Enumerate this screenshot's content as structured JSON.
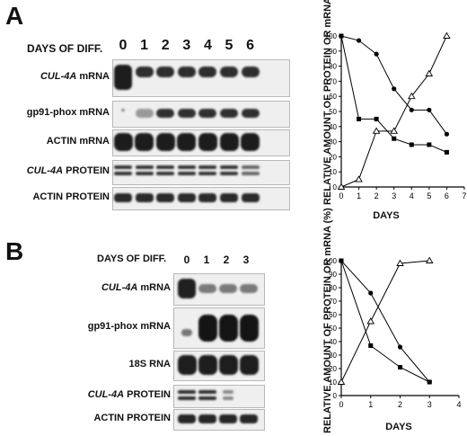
{
  "panelA": {
    "letter": "A",
    "header": "DAYS OF DIFF.",
    "days": [
      "0",
      "1",
      "2",
      "3",
      "4",
      "5",
      "6"
    ],
    "rows": [
      {
        "italic": "CUL-4A",
        "rest": " mRNA"
      },
      {
        "italic": "",
        "rest": "gp91-phox mRNA"
      },
      {
        "italic": "",
        "rest": "ACTIN mRNA"
      },
      {
        "italic": "CUL-4A",
        "rest": " PROTEIN"
      },
      {
        "italic": "",
        "rest": "ACTIN PROTEIN"
      }
    ]
  },
  "panelB": {
    "letter": "B",
    "header": "DAYS OF DIFF.",
    "days": [
      "0",
      "1",
      "2",
      "3"
    ],
    "rows": [
      {
        "italic": "CUL-4A",
        "rest": " mRNA"
      },
      {
        "italic": "",
        "rest": "gp91-phox mRNA"
      },
      {
        "italic": "",
        "rest": "18S RNA"
      },
      {
        "italic": "CUL-4A",
        "rest": " PROTEIN"
      },
      {
        "italic": "",
        "rest": "ACTIN PROTEIN"
      }
    ]
  },
  "chart_data": [
    {
      "type": "line",
      "ylabel": "RELATIVE AMOUNT OF PROTEIN OR mRNA (%)",
      "xlabel": "DAYS",
      "xlim": [
        0,
        7
      ],
      "ylim": [
        0,
        100
      ],
      "xticks": [
        "0",
        "1",
        "2",
        "3",
        "4",
        "5",
        "6",
        "7"
      ],
      "yticks": [
        "0",
        "10",
        "20",
        "30",
        "40",
        "50",
        "60",
        "70",
        "80",
        "90",
        "100"
      ],
      "series": [
        {
          "marker": "circle-filled",
          "x": [
            0,
            1,
            2,
            3,
            4,
            5,
            6
          ],
          "y": [
            100,
            97,
            88,
            65,
            51,
            51,
            35
          ]
        },
        {
          "marker": "square-filled",
          "x": [
            0,
            1,
            2,
            3,
            4,
            5,
            6
          ],
          "y": [
            100,
            45,
            45,
            32,
            28,
            28,
            23
          ]
        },
        {
          "marker": "triangle-open",
          "x": [
            0,
            1,
            2,
            3,
            4,
            5,
            6
          ],
          "y": [
            0,
            5,
            37,
            37,
            60,
            75,
            100
          ]
        }
      ]
    },
    {
      "type": "line",
      "ylabel": "RELATIVE AMOUNT OF PROTEIN OR mRNA (%)",
      "xlabel": "DAYS",
      "xlim": [
        0,
        4
      ],
      "ylim": [
        0,
        100
      ],
      "xticks": [
        "0",
        "1",
        "2",
        "3",
        "4"
      ],
      "yticks": [
        "0",
        "10",
        "20",
        "30",
        "40",
        "50",
        "60",
        "70",
        "80",
        "90",
        "100"
      ],
      "series": [
        {
          "marker": "circle-filled",
          "x": [
            0,
            1,
            2,
            3
          ],
          "y": [
            100,
            76,
            36,
            10
          ]
        },
        {
          "marker": "square-filled",
          "x": [
            0,
            1,
            2,
            3
          ],
          "y": [
            100,
            37,
            21,
            10
          ]
        },
        {
          "marker": "triangle-open",
          "x": [
            0,
            1,
            2,
            3
          ],
          "y": [
            10,
            55,
            98,
            100
          ]
        }
      ]
    }
  ]
}
